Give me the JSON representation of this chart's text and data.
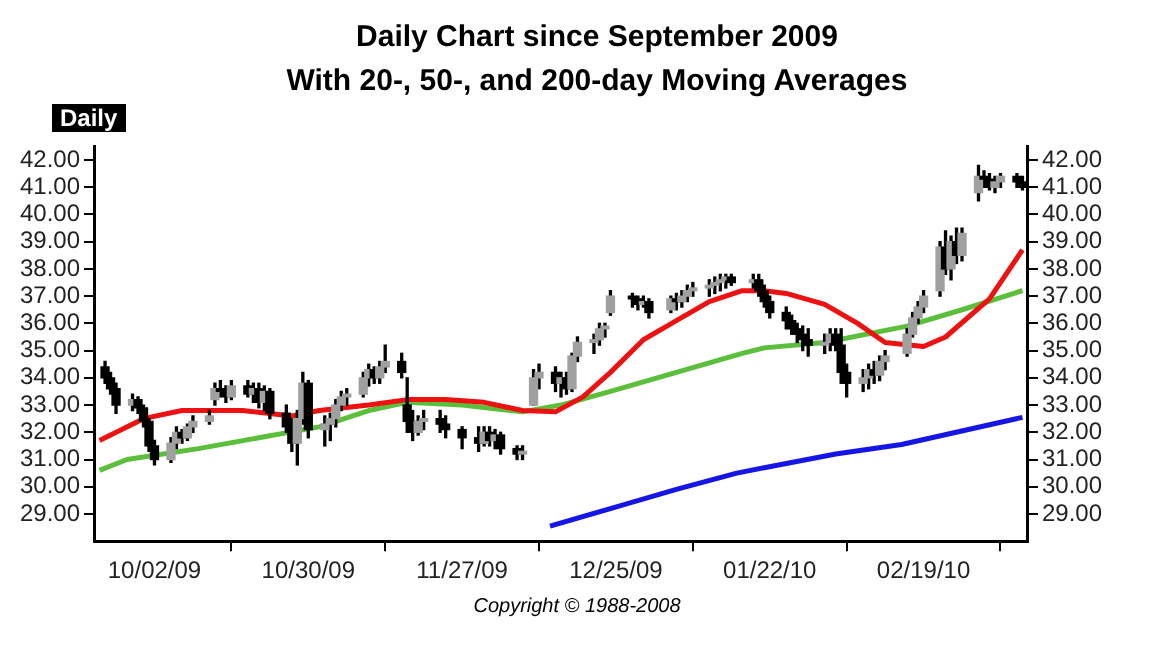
{
  "chart_data": {
    "type": "candlestick",
    "title": "Daily Chart since September 2009",
    "subtitle": "With 20-, 50-, and 200-day Moving Averages",
    "annotations": [
      "Daily",
      "Copyright © 1988-2008"
    ],
    "xlim": [
      "2009-09-21",
      "2010-03-10"
    ],
    "xticks": [
      {
        "value": "2009-10-02",
        "label": "10/02/09"
      },
      {
        "value": "2009-10-30",
        "label": "10/30/09"
      },
      {
        "value": "2009-11-27",
        "label": "11/27/09"
      },
      {
        "value": "2009-12-25",
        "label": "12/25/09"
      },
      {
        "value": "2010-01-22",
        "label": "01/22/10"
      },
      {
        "value": "2010-02-19",
        "label": "02/19/10"
      }
    ],
    "ylim": [
      28,
      42.5
    ],
    "yticks": [
      {
        "value": 29,
        "label": "29.00"
      },
      {
        "value": 30,
        "label": "30.00"
      },
      {
        "value": 31,
        "label": "31.00"
      },
      {
        "value": 32,
        "label": "32.00"
      },
      {
        "value": 33,
        "label": "33.00"
      },
      {
        "value": 34,
        "label": "34.00"
      },
      {
        "value": 35,
        "label": "35.00"
      },
      {
        "value": 36,
        "label": "36.00"
      },
      {
        "value": 37,
        "label": "37.00"
      },
      {
        "value": 38,
        "label": "38.00"
      },
      {
        "value": 39,
        "label": "39.00"
      },
      {
        "value": 40,
        "label": "40.00"
      },
      {
        "value": 41,
        "label": "41.00"
      },
      {
        "value": 42,
        "label": "42.00"
      }
    ],
    "y2lim": [
      28,
      42.5
    ],
    "y2ticks": [
      {
        "value": 29,
        "label": "29.00"
      },
      {
        "value": 30,
        "label": "30.00"
      },
      {
        "value": 31,
        "label": "31.00"
      },
      {
        "value": 32,
        "label": "32.00"
      },
      {
        "value": 33,
        "label": "33.00"
      },
      {
        "value": 34,
        "label": "34.00"
      },
      {
        "value": 35,
        "label": "35.00"
      },
      {
        "value": 36,
        "label": "36.00"
      },
      {
        "value": 37,
        "label": "37.00"
      },
      {
        "value": 38,
        "label": "38.00"
      },
      {
        "value": 39,
        "label": "39.00"
      },
      {
        "value": 40,
        "label": "40.00"
      },
      {
        "value": 41,
        "label": "41.00"
      },
      {
        "value": 42,
        "label": "42.00"
      }
    ],
    "grid": false,
    "legend": false,
    "x": [
      "2009-09-23",
      "2009-09-24",
      "2009-09-25",
      "2009-09-28",
      "2009-09-29",
      "2009-09-30",
      "2009-10-01",
      "2009-10-02",
      "2009-10-05",
      "2009-10-06",
      "2009-10-07",
      "2009-10-08",
      "2009-10-09",
      "2009-10-12",
      "2009-10-13",
      "2009-10-14",
      "2009-10-15",
      "2009-10-16",
      "2009-10-19",
      "2009-10-20",
      "2009-10-21",
      "2009-10-22",
      "2009-10-23",
      "2009-10-26",
      "2009-10-27",
      "2009-10-28",
      "2009-10-29",
      "2009-10-30",
      "2009-11-02",
      "2009-11-03",
      "2009-11-04",
      "2009-11-05",
      "2009-11-06",
      "2009-11-09",
      "2009-11-10",
      "2009-11-11",
      "2009-11-12",
      "2009-11-13",
      "2009-11-16",
      "2009-11-17",
      "2009-11-18",
      "2009-11-19",
      "2009-11-20",
      "2009-11-23",
      "2009-11-24",
      "2009-11-27",
      "2009-11-30",
      "2009-12-01",
      "2009-12-02",
      "2009-12-03",
      "2009-12-04",
      "2009-12-07",
      "2009-12-08",
      "2009-12-10",
      "2009-12-11",
      "2009-12-14",
      "2009-12-15",
      "2009-12-16",
      "2009-12-17",
      "2009-12-18",
      "2009-12-21",
      "2009-12-22",
      "2009-12-23",
      "2009-12-24",
      "2009-12-28",
      "2009-12-29",
      "2009-12-30",
      "2009-12-31",
      "2010-01-04",
      "2010-01-05",
      "2010-01-06",
      "2010-01-07",
      "2010-01-08",
      "2010-01-11",
      "2010-01-12",
      "2010-01-13",
      "2010-01-14",
      "2010-01-15",
      "2010-01-19",
      "2010-01-20",
      "2010-01-21",
      "2010-01-22",
      "2010-01-25",
      "2010-01-26",
      "2010-01-27",
      "2010-01-28",
      "2010-01-29",
      "2010-02-01",
      "2010-02-02",
      "2010-02-03",
      "2010-02-04",
      "2010-02-05",
      "2010-02-08",
      "2010-02-09",
      "2010-02-10",
      "2010-02-11",
      "2010-02-12",
      "2010-02-16",
      "2010-02-17",
      "2010-02-18",
      "2010-02-19",
      "2010-02-22",
      "2010-02-23",
      "2010-02-24",
      "2010-02-25",
      "2010-02-26",
      "2010-03-01",
      "2010-03-02",
      "2010-03-03",
      "2010-03-04",
      "2010-03-05",
      "2010-03-08",
      "2010-03-09"
    ],
    "ohlc": [
      [
        34.4,
        34.6,
        33.8,
        34.0
      ],
      [
        34.0,
        34.2,
        33.4,
        33.6
      ],
      [
        33.6,
        33.8,
        32.7,
        33.0
      ],
      [
        33.0,
        33.4,
        32.8,
        33.2
      ],
      [
        33.2,
        33.3,
        32.7,
        32.9
      ],
      [
        32.9,
        33.0,
        32.2,
        32.4
      ],
      [
        32.4,
        32.5,
        31.3,
        31.5
      ],
      [
        31.5,
        31.7,
        30.8,
        31.0
      ],
      [
        31.0,
        31.8,
        30.9,
        31.6
      ],
      [
        31.6,
        32.2,
        31.4,
        32.0
      ],
      [
        32.0,
        32.1,
        31.6,
        31.8
      ],
      [
        31.8,
        32.3,
        31.7,
        32.2
      ],
      [
        32.2,
        32.6,
        32.0,
        32.4
      ],
      [
        32.4,
        32.8,
        32.3,
        32.6
      ],
      [
        33.2,
        33.8,
        33.0,
        33.6
      ],
      [
        33.6,
        33.9,
        33.3,
        33.5
      ],
      [
        33.5,
        33.7,
        33.1,
        33.3
      ],
      [
        33.3,
        33.9,
        33.2,
        33.7
      ],
      [
        33.7,
        33.9,
        33.3,
        33.4
      ],
      [
        33.4,
        33.8,
        33.1,
        33.6
      ],
      [
        33.6,
        33.8,
        32.9,
        33.1
      ],
      [
        33.1,
        33.7,
        32.8,
        33.5
      ],
      [
        33.5,
        33.6,
        32.5,
        32.7
      ],
      [
        32.7,
        33.0,
        32.0,
        32.2
      ],
      [
        32.2,
        32.5,
        31.3,
        31.6
      ],
      [
        31.6,
        32.8,
        30.8,
        32.5
      ],
      [
        32.5,
        34.2,
        32.3,
        33.8
      ],
      [
        33.8,
        33.9,
        31.8,
        32.1
      ],
      [
        32.1,
        32.6,
        31.5,
        32.3
      ],
      [
        32.3,
        32.7,
        31.7,
        32.5
      ],
      [
        32.5,
        33.2,
        32.2,
        33.0
      ],
      [
        33.0,
        33.5,
        32.8,
        33.3
      ],
      [
        33.3,
        33.6,
        33.0,
        33.4
      ],
      [
        33.4,
        34.2,
        33.3,
        34.0
      ],
      [
        34.0,
        34.5,
        33.7,
        34.3
      ],
      [
        34.3,
        34.4,
        33.8,
        34.0
      ],
      [
        34.0,
        34.6,
        33.8,
        34.4
      ],
      [
        34.4,
        35.2,
        34.2,
        34.6
      ],
      [
        34.6,
        34.9,
        34.0,
        34.2
      ],
      [
        33.0,
        34.0,
        32.0,
        32.4
      ],
      [
        32.4,
        32.8,
        31.7,
        32.0
      ],
      [
        32.0,
        32.6,
        31.9,
        32.4
      ],
      [
        32.4,
        32.8,
        32.1,
        32.5
      ],
      [
        32.5,
        32.8,
        32.0,
        32.3
      ],
      [
        32.3,
        32.6,
        31.8,
        32.1
      ],
      [
        32.1,
        32.2,
        31.4,
        31.8
      ],
      [
        31.8,
        32.2,
        31.3,
        31.6
      ],
      [
        31.6,
        32.2,
        31.5,
        32.0
      ],
      [
        32.0,
        32.2,
        31.5,
        31.7
      ],
      [
        31.7,
        32.1,
        31.4,
        31.9
      ],
      [
        31.9,
        32.0,
        31.2,
        31.4
      ],
      [
        31.4,
        31.5,
        31.0,
        31.2
      ],
      [
        31.2,
        31.5,
        31.0,
        31.3
      ],
      [
        33.0,
        34.3,
        33.0,
        34.0
      ],
      [
        34.0,
        34.5,
        33.6,
        34.2
      ],
      [
        34.2,
        34.4,
        33.5,
        33.8
      ],
      [
        33.8,
        34.2,
        33.3,
        34.0
      ],
      [
        34.0,
        34.2,
        33.4,
        33.6
      ],
      [
        33.6,
        34.9,
        33.5,
        34.8
      ],
      [
        34.8,
        35.5,
        34.6,
        35.3
      ],
      [
        35.3,
        35.6,
        34.9,
        35.4
      ],
      [
        35.4,
        36.0,
        35.2,
        35.8
      ],
      [
        35.8,
        36.0,
        35.5,
        35.9
      ],
      [
        36.4,
        37.2,
        36.3,
        37.0
      ],
      [
        37.0,
        37.1,
        36.6,
        36.9
      ],
      [
        36.9,
        37.0,
        36.5,
        36.7
      ],
      [
        36.7,
        37.0,
        36.6,
        36.8
      ],
      [
        36.8,
        36.9,
        36.2,
        36.4
      ],
      [
        36.5,
        37.0,
        36.4,
        36.9
      ],
      [
        36.9,
        37.1,
        36.5,
        36.8
      ],
      [
        36.8,
        37.2,
        36.6,
        37.0
      ],
      [
        37.0,
        37.4,
        36.8,
        37.2
      ],
      [
        37.2,
        37.5,
        37.0,
        37.3
      ],
      [
        37.3,
        37.6,
        37.0,
        37.4
      ],
      [
        37.4,
        37.7,
        37.1,
        37.5
      ],
      [
        37.5,
        37.8,
        37.2,
        37.6
      ],
      [
        37.6,
        37.8,
        37.3,
        37.7
      ],
      [
        37.7,
        37.8,
        37.4,
        37.5
      ],
      [
        37.5,
        37.8,
        37.3,
        37.6
      ],
      [
        37.6,
        37.8,
        37.0,
        37.2
      ],
      [
        37.2,
        37.4,
        36.6,
        36.8
      ],
      [
        36.8,
        37.0,
        36.2,
        36.4
      ],
      [
        36.4,
        36.6,
        35.8,
        36.1
      ],
      [
        36.1,
        36.3,
        35.6,
        35.8
      ],
      [
        35.8,
        36.0,
        35.3,
        35.6
      ],
      [
        35.6,
        35.9,
        35.0,
        35.4
      ],
      [
        35.4,
        35.8,
        34.8,
        35.2
      ],
      [
        35.2,
        35.6,
        34.9,
        35.3
      ],
      [
        35.3,
        35.8,
        35.0,
        35.6
      ],
      [
        35.6,
        35.8,
        35.0,
        35.2
      ],
      [
        35.2,
        35.8,
        33.8,
        34.2
      ],
      [
        34.2,
        34.5,
        33.3,
        33.8
      ],
      [
        33.8,
        34.3,
        33.5,
        34.0
      ],
      [
        34.0,
        34.5,
        33.6,
        34.3
      ],
      [
        34.3,
        34.6,
        33.8,
        34.1
      ],
      [
        34.1,
        34.8,
        33.9,
        34.6
      ],
      [
        34.6,
        35.0,
        34.3,
        34.8
      ],
      [
        34.9,
        35.8,
        34.8,
        35.6
      ],
      [
        35.6,
        36.4,
        35.5,
        36.2
      ],
      [
        36.2,
        36.8,
        36.0,
        36.6
      ],
      [
        36.6,
        37.2,
        36.4,
        37.0
      ],
      [
        37.2,
        39.0,
        37.0,
        38.8
      ],
      [
        38.8,
        39.4,
        37.8,
        38.0
      ],
      [
        38.0,
        39.2,
        37.6,
        39.0
      ],
      [
        39.0,
        39.5,
        38.2,
        38.5
      ],
      [
        38.5,
        39.5,
        38.3,
        39.3
      ],
      [
        40.8,
        41.8,
        40.5,
        41.4
      ],
      [
        41.4,
        41.6,
        41.0,
        41.3
      ],
      [
        41.3,
        41.5,
        40.9,
        41.0
      ],
      [
        41.0,
        41.4,
        40.8,
        41.2
      ],
      [
        41.2,
        41.5,
        41.0,
        41.4
      ],
      [
        41.4,
        41.5,
        41.0,
        41.2
      ],
      [
        41.2,
        41.4,
        40.9,
        41.0
      ]
    ],
    "series": [
      {
        "type": "line",
        "color": "#ee1111",
        "x": [
          "2009-09-22",
          "2009-09-30",
          "2009-10-07",
          "2009-10-18",
          "2009-10-27",
          "2009-11-01",
          "2009-11-10",
          "2009-11-17",
          "2009-11-24",
          "2009-12-01",
          "2009-12-08",
          "2009-12-14",
          "2009-12-19",
          "2009-12-24",
          "2009-12-30",
          "2010-01-05",
          "2010-01-11",
          "2010-01-17",
          "2010-01-21",
          "2010-01-25",
          "2010-02-01",
          "2010-02-07",
          "2010-02-12",
          "2010-02-19",
          "2010-02-23",
          "2010-03-03",
          "2010-03-09"
        ],
        "values": [
          31.7,
          32.5,
          32.8,
          32.8,
          32.6,
          32.8,
          33.0,
          33.2,
          33.2,
          33.1,
          32.8,
          32.75,
          33.3,
          34.2,
          35.4,
          36.1,
          36.8,
          37.2,
          37.2,
          37.1,
          36.7,
          36.0,
          35.3,
          35.15,
          35.5,
          36.9,
          38.7
        ]
      },
      {
        "type": "line",
        "color": "#5cbf3c",
        "x": [
          "2009-09-22",
          "2009-09-27",
          "2009-10-10",
          "2009-10-21",
          "2009-11-01",
          "2009-11-10",
          "2009-11-17",
          "2009-11-27",
          "2009-12-08",
          "2009-12-15",
          "2009-12-24",
          "2010-01-05",
          "2010-01-17",
          "2010-01-21",
          "2010-02-01",
          "2010-02-16",
          "2010-02-26",
          "2010-03-09"
        ],
        "values": [
          30.6,
          31.0,
          31.4,
          31.8,
          32.2,
          32.8,
          33.1,
          33.0,
          32.75,
          33.0,
          33.5,
          34.2,
          34.9,
          35.1,
          35.3,
          35.9,
          36.5,
          37.2
        ]
      },
      {
        "type": "line",
        "color": "#1515e6",
        "x": [
          "2009-12-13",
          "2009-12-24",
          "2010-01-05",
          "2010-01-16",
          "2010-01-21",
          "2010-02-03",
          "2010-02-15",
          "2010-03-09"
        ],
        "values": [
          28.55,
          29.2,
          29.9,
          30.5,
          30.7,
          31.2,
          31.55,
          32.55
        ]
      }
    ]
  }
}
